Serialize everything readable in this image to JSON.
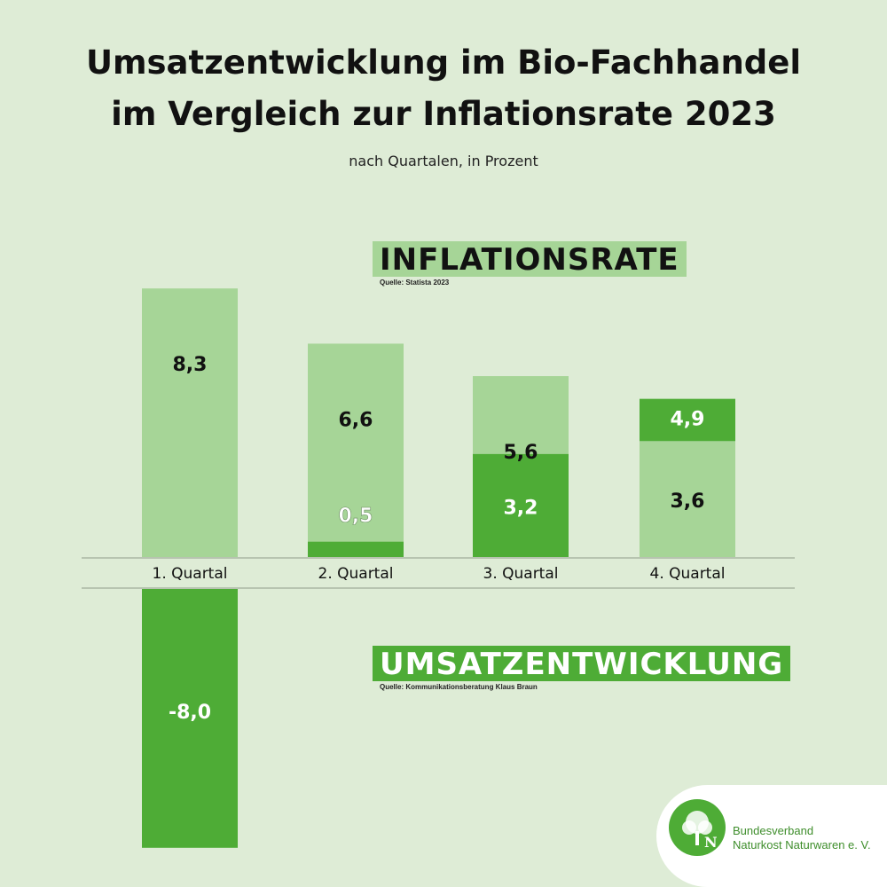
{
  "header": {
    "title_line1": "Umsatzentwicklung im Bio-Fachhandel",
    "title_line2": "im Vergleich zur Inflationsrate 2023",
    "subtitle": "nach Quartalen,  in Prozent"
  },
  "labels": {
    "inflation": "INFLATIONSRATE",
    "inflation_source": "Quelle: Statista 2023",
    "umsatz": "UMSATZENTWICKLUNG",
    "umsatz_source": "Quelle: Kommunikationsberatung Klaus Braun"
  },
  "logo": {
    "line1": "Bundesverband",
    "line2": "Naturkost Naturwaren e. V.",
    "emblem": "tree-icon"
  },
  "colors": {
    "background": "#deecd6",
    "inflation_bar": "#a6d597",
    "umsatz_bar": "#4eac36",
    "label_box_light": "#a6d597",
    "label_box_dark": "#4eac36"
  },
  "chart_data": {
    "type": "bar",
    "categories": [
      "1. Quartal",
      "2. Quartal",
      "3. Quartal",
      "4. Quartal"
    ],
    "series": [
      {
        "name": "INFLATIONSRATE",
        "values": [
          8.3,
          6.6,
          5.6,
          3.6
        ],
        "labels": [
          "8,3",
          "6,6",
          "5,6",
          "3,6"
        ]
      },
      {
        "name": "UMSATZENTWICKLUNG",
        "values": [
          -8.0,
          0.5,
          3.2,
          4.9
        ],
        "labels": [
          "-8,0",
          "0,5",
          "3,2",
          "4,9"
        ]
      }
    ]
  }
}
